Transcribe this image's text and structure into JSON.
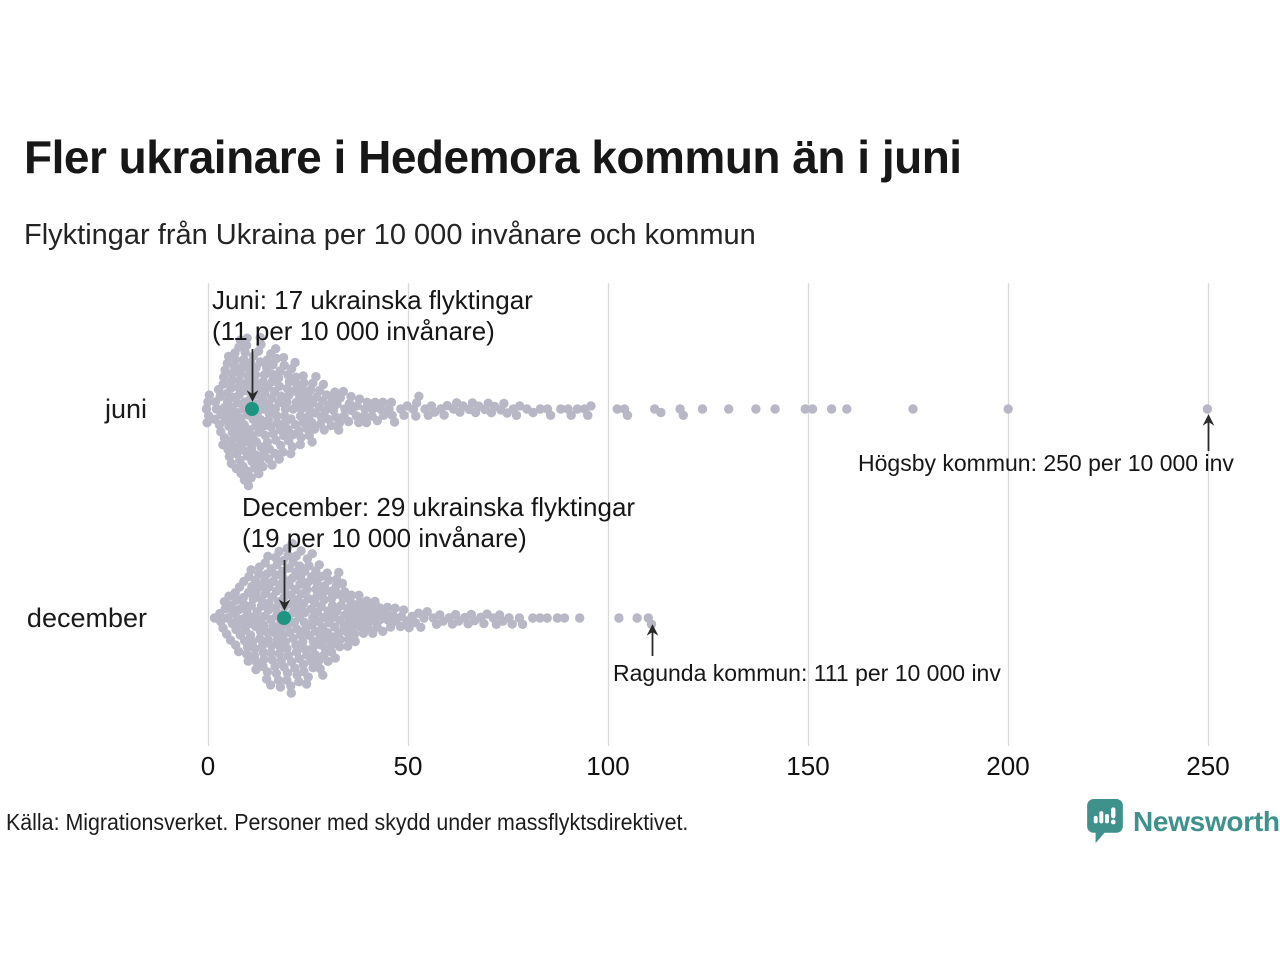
{
  "header": {
    "title": "Fler ukrainare i Hedemora kommun än i juni",
    "subtitle": "Flyktingar från Ukraina per 10 000 invånare och kommun"
  },
  "row_labels": {
    "juni": "juni",
    "december": "december"
  },
  "annotations": {
    "juni": {
      "line1": "Juni: 17 ukrainska flyktingar",
      "line2": "(11 per 10 000 invånare)",
      "arrow_to_value": 11
    },
    "december": {
      "line1": "December: 29 ukrainska flyktingar",
      "line2": "(19 per 10 000 invånare)",
      "arrow_to_value": 19
    },
    "hogsby": {
      "text": "Högsby kommun: 250 per 10 000 inv",
      "arrow_to_value": 250
    },
    "ragunda": {
      "text": "Ragunda kommun: 111 per 10 000 inv",
      "arrow_to_value": 111
    }
  },
  "footer": {
    "source": "Källa: Migrationsverket. Personer med skydd under massflyktsdirektivet.",
    "brand": "Newsworthy",
    "brand_color": "#3f918b"
  },
  "chart_data": {
    "type": "scatter",
    "variant": "beeswarm",
    "title": "Fler ukrainare i Hedemora kommun än i juni",
    "subtitle": "Flyktingar från Ukraina per 10 000 invånare och kommun",
    "xlabel": "Flyktingar från Ukraina per 10 000 invånare",
    "x_ticks": [
      0,
      50,
      100,
      150,
      200,
      250
    ],
    "x_range": [
      0,
      250
    ],
    "grid": true,
    "dot_color": "#b7b7c5",
    "grid_color": "#d9d9d9",
    "highlight_color": "#1e9483",
    "rows": [
      {
        "label": "juni",
        "highlight": {
          "value": 11,
          "note": "Hedemora kommun: 17 ukrainska flyktingar, 11 per 10 000 invånare"
        },
        "outlier_notes": [
          {
            "value": 250,
            "note": "Högsby kommun: 250 per 10 000 inv"
          }
        ],
        "values_hist": [
          [
            0,
            5
          ],
          [
            2,
            3
          ],
          [
            3,
            5
          ],
          [
            4,
            7
          ],
          [
            5,
            8
          ],
          [
            6,
            9
          ],
          [
            7,
            10
          ],
          [
            8,
            11
          ],
          [
            9,
            11
          ],
          [
            10,
            11
          ],
          [
            11,
            10
          ],
          [
            12,
            10
          ],
          [
            13,
            10
          ],
          [
            14,
            9
          ],
          [
            15,
            9
          ],
          [
            16,
            8
          ],
          [
            17,
            8
          ],
          [
            18,
            8
          ],
          [
            19,
            7
          ],
          [
            20,
            7
          ],
          [
            21,
            6
          ],
          [
            22,
            6
          ],
          [
            23,
            6
          ],
          [
            24,
            5
          ],
          [
            25,
            5
          ],
          [
            26,
            5
          ],
          [
            27,
            4
          ],
          [
            28,
            4
          ],
          [
            29,
            4
          ],
          [
            30,
            3
          ],
          [
            31,
            3
          ],
          [
            32,
            3
          ],
          [
            33,
            3
          ],
          [
            34,
            3
          ],
          [
            35,
            2
          ],
          [
            36,
            2
          ],
          [
            37,
            2
          ],
          [
            38,
            2
          ],
          [
            39,
            2
          ],
          [
            40,
            2
          ],
          [
            41,
            2
          ],
          [
            42,
            2
          ],
          [
            43,
            1
          ],
          [
            44,
            2
          ],
          [
            45,
            1
          ],
          [
            46,
            2
          ],
          [
            47,
            1
          ],
          [
            48,
            1
          ],
          [
            49,
            1
          ],
          [
            50,
            1
          ],
          [
            51,
            1
          ],
          [
            52,
            2
          ],
          [
            53,
            1
          ],
          [
            54,
            1
          ],
          [
            55,
            1
          ],
          [
            56,
            1
          ],
          [
            57,
            1
          ],
          [
            58,
            1
          ],
          [
            59,
            1
          ],
          [
            60,
            1
          ],
          [
            61,
            1
          ],
          [
            62,
            1
          ],
          [
            63,
            1
          ],
          [
            64,
            1
          ],
          [
            65,
            1
          ],
          [
            66,
            1
          ],
          [
            67,
            1
          ],
          [
            68,
            1
          ],
          [
            69,
            1
          ],
          [
            70,
            1
          ],
          [
            71,
            1
          ],
          [
            72,
            1
          ],
          [
            73,
            1
          ],
          [
            74,
            1
          ],
          [
            75,
            1
          ],
          [
            76,
            1
          ],
          [
            77,
            1
          ],
          [
            78,
            1
          ],
          [
            80,
            1
          ],
          [
            81,
            1
          ],
          [
            83,
            1
          ],
          [
            85,
            1
          ],
          [
            86,
            1
          ],
          [
            88,
            1
          ],
          [
            90,
            1
          ],
          [
            91,
            1
          ],
          [
            92,
            1
          ],
          [
            94,
            1
          ],
          [
            95,
            1
          ],
          [
            96,
            1
          ],
          [
            102,
            1
          ],
          [
            104,
            1
          ],
          [
            105,
            1
          ],
          [
            112,
            1
          ],
          [
            113,
            1
          ],
          [
            118,
            1
          ],
          [
            119,
            1
          ],
          [
            124,
            1
          ],
          [
            130,
            1
          ],
          [
            137,
            1
          ],
          [
            142,
            1
          ],
          [
            149,
            1
          ],
          [
            151,
            1
          ],
          [
            156,
            1
          ],
          [
            160,
            1
          ],
          [
            176,
            1
          ],
          [
            200,
            1
          ],
          [
            250,
            1
          ]
        ]
      },
      {
        "label": "december",
        "highlight": {
          "value": 19,
          "note": "Hedemora kommun: 29 ukrainska flyktingar, 19 per 10 000 invånare"
        },
        "outlier_notes": [
          {
            "value": 111,
            "note": "Ragunda kommun: 111 per 10 000 inv"
          }
        ],
        "values_hist": [
          [
            2,
            1
          ],
          [
            3,
            2
          ],
          [
            4,
            3
          ],
          [
            5,
            3
          ],
          [
            6,
            4
          ],
          [
            7,
            5
          ],
          [
            8,
            5
          ],
          [
            9,
            6
          ],
          [
            10,
            7
          ],
          [
            11,
            7
          ],
          [
            12,
            8
          ],
          [
            13,
            8
          ],
          [
            14,
            9
          ],
          [
            15,
            9
          ],
          [
            16,
            9
          ],
          [
            17,
            10
          ],
          [
            18,
            10
          ],
          [
            19,
            10
          ],
          [
            20,
            11
          ],
          [
            21,
            10
          ],
          [
            22,
            10
          ],
          [
            23,
            10
          ],
          [
            24,
            9
          ],
          [
            25,
            9
          ],
          [
            26,
            9
          ],
          [
            27,
            8
          ],
          [
            28,
            8
          ],
          [
            29,
            8
          ],
          [
            30,
            7
          ],
          [
            31,
            7
          ],
          [
            32,
            6
          ],
          [
            33,
            6
          ],
          [
            34,
            5
          ],
          [
            35,
            5
          ],
          [
            36,
            4
          ],
          [
            37,
            4
          ],
          [
            38,
            4
          ],
          [
            39,
            3
          ],
          [
            40,
            3
          ],
          [
            41,
            3
          ],
          [
            42,
            3
          ],
          [
            43,
            2
          ],
          [
            44,
            2
          ],
          [
            45,
            2
          ],
          [
            46,
            2
          ],
          [
            47,
            2
          ],
          [
            48,
            2
          ],
          [
            49,
            1
          ],
          [
            50,
            2
          ],
          [
            51,
            1
          ],
          [
            52,
            1
          ],
          [
            53,
            2
          ],
          [
            54,
            1
          ],
          [
            55,
            1
          ],
          [
            56,
            1
          ],
          [
            57,
            1
          ],
          [
            58,
            1
          ],
          [
            59,
            1
          ],
          [
            60,
            1
          ],
          [
            61,
            1
          ],
          [
            62,
            1
          ],
          [
            63,
            1
          ],
          [
            64,
            1
          ],
          [
            65,
            1
          ],
          [
            66,
            1
          ],
          [
            67,
            1
          ],
          [
            68,
            1
          ],
          [
            69,
            1
          ],
          [
            70,
            1
          ],
          [
            71,
            1
          ],
          [
            72,
            1
          ],
          [
            73,
            1
          ],
          [
            74,
            1
          ],
          [
            75,
            1
          ],
          [
            76,
            1
          ],
          [
            78,
            1
          ],
          [
            79,
            1
          ],
          [
            81,
            1
          ],
          [
            83,
            1
          ],
          [
            85,
            1
          ],
          [
            87,
            1
          ],
          [
            89,
            1
          ],
          [
            93,
            1
          ],
          [
            103,
            1
          ],
          [
            107,
            1
          ],
          [
            110,
            1
          ],
          [
            111,
            1
          ]
        ]
      }
    ]
  }
}
